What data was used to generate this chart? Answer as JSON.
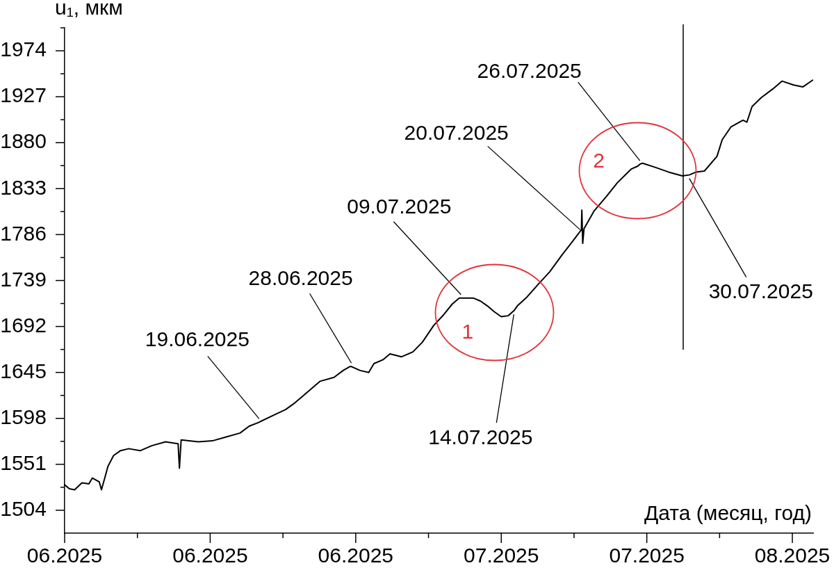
{
  "chart_data": {
    "type": "line",
    "xlabel": "Дата (месяц, год)",
    "ylabel": "u₁, мкм",
    "x": [
      "2025-06-01T00:00",
      "2025-06-01T11:00",
      "2025-06-01T23:00",
      "2025-06-02T16:00",
      "2025-06-03T08:00",
      "2025-06-03T16:00",
      "2025-06-04T08:00",
      "2025-06-04T13:00",
      "2025-06-04T20:00",
      "2025-06-05T04:00",
      "2025-06-05T17:00",
      "2025-06-06T09:00",
      "2025-06-07T04:00",
      "2025-06-08T07:00",
      "2025-06-09T09:00",
      "2025-06-10T17:00",
      "2025-06-11T22:00",
      "2025-06-12T01:00",
      "2025-06-12T05:00",
      "2025-06-13T21:00",
      "2025-06-15T05:00",
      "2025-06-16T13:00",
      "2025-06-17T21:00",
      "2025-06-18T18:00",
      "2025-06-19T17:00",
      "2025-06-19T21:00",
      "2025-06-21T01:00",
      "2025-06-22T06:00",
      "2025-06-23T01:00",
      "2025-06-24T01:00",
      "2025-06-25T14:00",
      "2025-06-26T22:00",
      "2025-06-27T19:00",
      "2025-06-28T11:00",
      "2025-06-28T14:00",
      "2025-06-29T10:00",
      "2025-06-30T06:00",
      "2025-06-30T18:00",
      "2025-07-01T15:00",
      "2025-07-02T07:00",
      "2025-07-03T10:00",
      "2025-07-04T12:00",
      "2025-07-05T10:00",
      "2025-07-06T12:00",
      "2025-07-07T11:00",
      "2025-07-08T07:00",
      "2025-07-08T23:00",
      "2025-07-09T03:00",
      "2025-07-10T08:00",
      "2025-07-11T00:00",
      "2025-07-11T16:00",
      "2025-07-12T08:00",
      "2025-07-13T00:00",
      "2025-07-13T16:00",
      "2025-07-14T05:00",
      "2025-07-14T13:00",
      "2025-07-15T11:00",
      "2025-07-16T13:00",
      "2025-07-17T16:00",
      "2025-07-18T20:00",
      "2025-07-19T17:00",
      "2025-07-20T17:00",
      "2025-07-20T18:00",
      "2025-07-20T20:00",
      "2025-07-20T23:00",
      "2025-07-21T22:00",
      "2025-07-23T01:00",
      "2025-07-24T04:00",
      "2025-07-25T12:00",
      "2025-07-26T03:00",
      "2025-07-26T08:00",
      "2025-07-26T14:00",
      "2025-07-27T18:00",
      "2025-07-29T02:00",
      "2025-07-30T10:00",
      "2025-07-31T02:00",
      "2025-07-31T18:00",
      "2025-08-01T13:00",
      "2025-08-02T18:00",
      "2025-08-03T06:00",
      "2025-08-04T02:00",
      "2025-08-05T06:00",
      "2025-08-05T15:00",
      "2025-08-06T03:00",
      "2025-08-07T00:00",
      "2025-08-08T03:00",
      "2025-08-09T00:00",
      "2025-08-10T03:00",
      "2025-08-11T00:00",
      "2025-08-11T23:00"
    ],
    "series": [
      {
        "color": "#000000",
        "values": [
          1530,
          1526,
          1525,
          1532,
          1531,
          1537,
          1533,
          1525,
          1536,
          1549,
          1560,
          1565,
          1567,
          1565,
          1570,
          1574,
          1572,
          1547,
          1576,
          1574,
          1575,
          1579,
          1583,
          1590,
          1594,
          1595,
          1601,
          1607,
          1613,
          1622,
          1636,
          1640,
          1647,
          1651,
          1651,
          1647,
          1645,
          1654,
          1658,
          1664,
          1661,
          1666,
          1676,
          1693,
          1704,
          1715,
          1721,
          1721,
          1721,
          1718,
          1713,
          1707,
          1702,
          1703,
          1708,
          1713,
          1722,
          1735,
          1748,
          1765,
          1777,
          1791,
          1811,
          1777,
          1792,
          1810,
          1824,
          1839,
          1853,
          1856,
          1858,
          1859,
          1855,
          1850,
          1846,
          1847,
          1850,
          1851,
          1866,
          1883,
          1896,
          1903,
          1901,
          1917,
          1926,
          1935,
          1943,
          1939,
          1937,
          1944
        ]
      }
    ],
    "xlim": [
      "2025-06-01",
      "2025-08-12"
    ],
    "xticks": [
      {
        "value": "2025-06-01",
        "label": "06.2025"
      },
      {
        "value": "2025-06-08",
        "label": null
      },
      {
        "value": "2025-06-15",
        "label": "06.2025"
      },
      {
        "value": "2025-06-22",
        "label": null
      },
      {
        "value": "2025-06-29",
        "label": "06.2025"
      },
      {
        "value": "2025-07-06",
        "label": null
      },
      {
        "value": "2025-07-13",
        "label": "07.2025"
      },
      {
        "value": "2025-07-20",
        "label": null
      },
      {
        "value": "2025-07-27",
        "label": "07.2025"
      },
      {
        "value": "2025-08-03",
        "label": null
      },
      {
        "value": "2025-08-10",
        "label": "08.2025"
      }
    ],
    "ylim": [
      1480.5,
      1997.5
    ],
    "yticks": [
      1504,
      {
        "value": 1527.5,
        "label": null
      },
      1551,
      {
        "value": 1574.5,
        "label": null
      },
      1598,
      {
        "value": 1621.5,
        "label": null
      },
      1645,
      {
        "value": 1668.5,
        "label": null
      },
      1692,
      {
        "value": 1715.5,
        "label": null
      },
      1739,
      {
        "value": 1762.5,
        "label": null
      },
      1786,
      {
        "value": 1809.5,
        "label": null
      },
      1833,
      {
        "value": 1856.5,
        "label": null
      },
      1880,
      {
        "value": 1903.5,
        "label": null
      },
      1927,
      {
        "value": 1950.5,
        "label": null
      },
      1974,
      {
        "value": 1997.5,
        "label": null
      }
    ],
    "ref_lines": [
      {
        "axis": "x",
        "value": "2025-07-30T12:00",
        "color": "#000000"
      }
    ],
    "annotations": [
      {
        "text": "19.06.2025",
        "x": "2025-06-19T17:00",
        "y": 1594
      },
      {
        "text": "28.06.2025",
        "x": "2025-06-28T14:00",
        "y": 1651
      },
      {
        "text": "09.07.2025",
        "x": "2025-07-09T03:00",
        "y": 1721
      },
      {
        "text": "14.07.2025",
        "x": "2025-07-14T05:00",
        "y": 1708
      },
      {
        "text": "20.07.2025",
        "x": "2025-07-20T14:00",
        "y": 1791
      },
      {
        "text": "26.07.2025",
        "x": "2025-07-26T08:00",
        "y": 1858
      },
      {
        "text": "30.07.2025",
        "x": "2025-07-31T02:00",
        "y": 1847
      },
      {
        "text": "1",
        "x": "2025-07-12T09:00",
        "y": 1706
      },
      {
        "text": "2",
        "x": "2025-07-26T03:00",
        "y": 1856
      }
    ],
    "grid": false,
    "legend": false
  }
}
